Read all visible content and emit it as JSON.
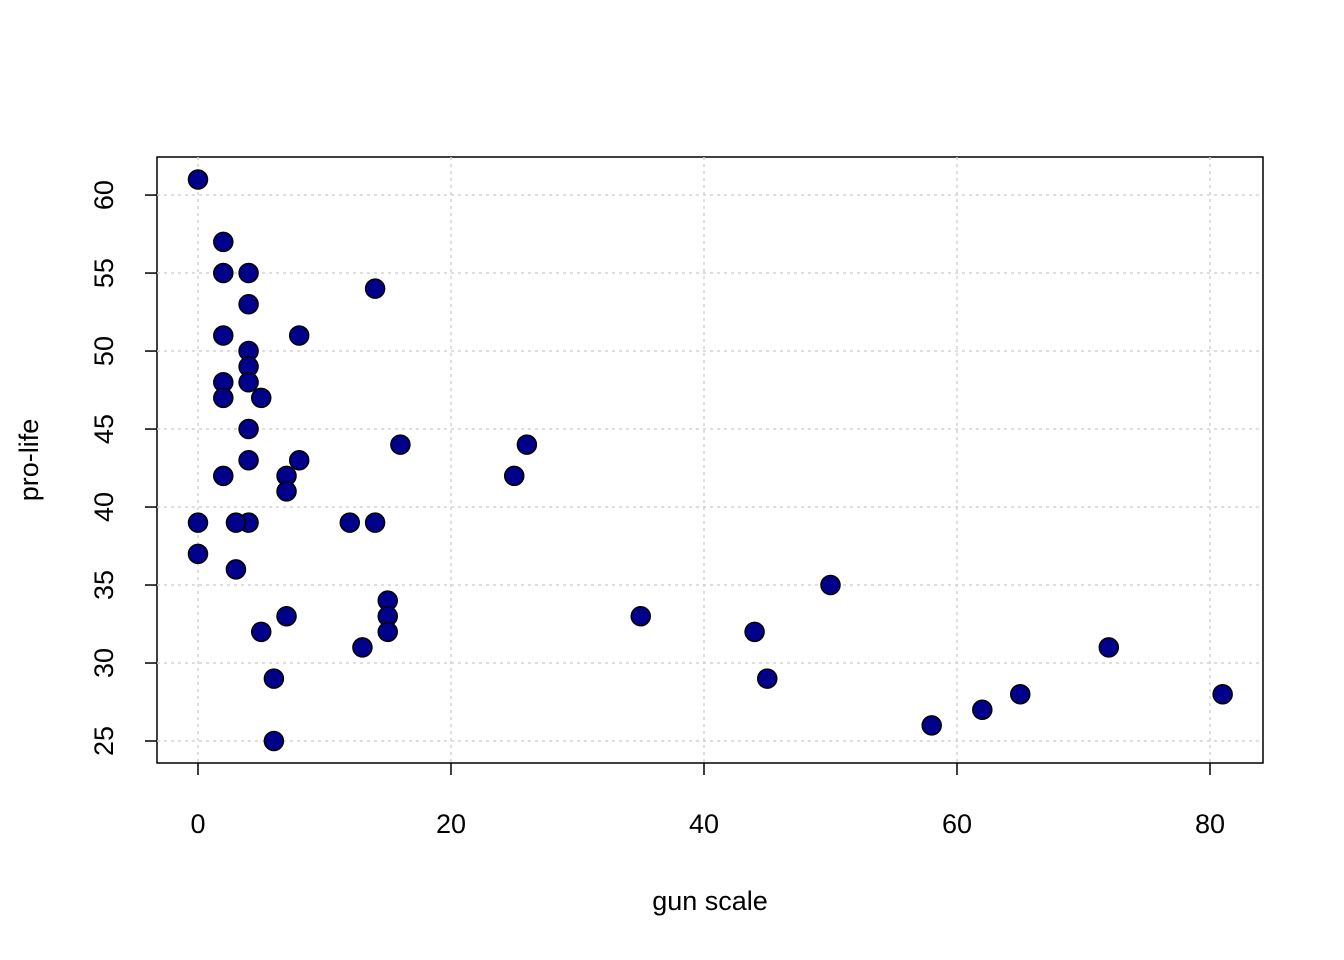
{
  "chart_data": {
    "type": "scatter",
    "x_label": "gun scale",
    "y_label": "pro-life",
    "x": [
      0,
      0,
      0,
      2,
      2,
      2,
      2,
      2,
      2,
      4,
      4,
      4,
      4,
      4,
      4,
      4,
      4,
      3,
      3,
      5,
      5,
      8,
      8,
      7,
      7,
      7,
      6,
      6,
      14,
      12,
      14,
      16,
      15,
      15,
      15,
      13,
      25,
      26,
      35,
      44,
      45,
      50,
      58,
      62,
      65,
      72,
      81
    ],
    "values": [
      61,
      39,
      37,
      57,
      55,
      51,
      48,
      47,
      42,
      55,
      53,
      50,
      49,
      48,
      45,
      43,
      39,
      39,
      36,
      47,
      32,
      51,
      43,
      42,
      41,
      33,
      29,
      25,
      54,
      39,
      39,
      44,
      34,
      33,
      32,
      31,
      42,
      44,
      33,
      32,
      29,
      35,
      26,
      27,
      28,
      31,
      28
    ],
    "color": "#00008b",
    "xlim": [
      -3.24,
      84.19
    ],
    "ylim": [
      23.59,
      62.44
    ],
    "xticks": [
      0,
      20,
      40,
      60,
      80
    ],
    "yticks": [
      25,
      30,
      35,
      40,
      45,
      50,
      55,
      60
    ],
    "grid": true
  }
}
